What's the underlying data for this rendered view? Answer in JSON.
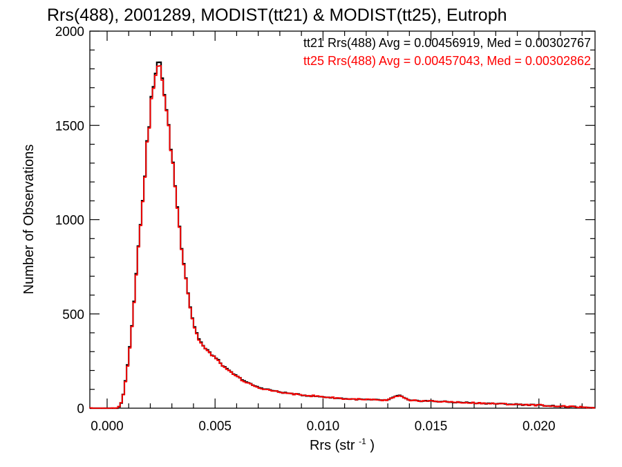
{
  "chart_data": {
    "type": "line",
    "title": "Rrs(488), 2001289, MODIST(tt21) & MODIST(tt25), Eutroph",
    "xlabel": "Rrs (str",
    "xlabel_superscript": "-1",
    "xlabel_suffix": ")",
    "ylabel": "Number of Observations",
    "xlim": [
      -0.0008,
      0.0226
    ],
    "ylim": [
      0,
      2000
    ],
    "xticks": [
      {
        "value": 0.0,
        "label": "0.000"
      },
      {
        "value": 0.005,
        "label": "0.005"
      },
      {
        "value": 0.01,
        "label": "0.010"
      },
      {
        "value": 0.015,
        "label": "0.015"
      },
      {
        "value": 0.02,
        "label": "0.020"
      }
    ],
    "yticks": [
      {
        "value": 0,
        "label": "0"
      },
      {
        "value": 500,
        "label": "500"
      },
      {
        "value": 1000,
        "label": "1000"
      },
      {
        "value": 1500,
        "label": "1500"
      },
      {
        "value": 2000,
        "label": "2000"
      }
    ],
    "grid": false,
    "legend_position": "top-right",
    "legend": [
      {
        "text": "tt21 Rrs(488) Avg = 0.00456919, Med = 0.00302767",
        "color": "#000000"
      },
      {
        "text": "tt25 Rrs(488) Avg = 0.00457043, Med = 0.00302862",
        "color": "#ff0000"
      }
    ],
    "series": [
      {
        "name": "tt21",
        "color": "#000000",
        "x": [
          0.0,
          0.0005,
          0.0007,
          0.0009,
          0.0011,
          0.0013,
          0.0015,
          0.0017,
          0.0019,
          0.0021,
          0.0023,
          0.0024,
          0.0025,
          0.0026,
          0.0027,
          0.0028,
          0.003,
          0.0032,
          0.0034,
          0.0036,
          0.0038,
          0.004,
          0.0042,
          0.0045,
          0.005,
          0.0055,
          0.006,
          0.0065,
          0.007,
          0.008,
          0.009,
          0.01,
          0.011,
          0.012,
          0.013,
          0.0135,
          0.014,
          0.015,
          0.016,
          0.017,
          0.018,
          0.019,
          0.02,
          0.021,
          0.022,
          0.0226
        ],
        "values": [
          0,
          0,
          40,
          180,
          380,
          640,
          920,
          1180,
          1460,
          1690,
          1780,
          1840,
          1830,
          1720,
          1620,
          1520,
          1350,
          1130,
          900,
          740,
          570,
          450,
          380,
          320,
          270,
          210,
          170,
          135,
          110,
          85,
          70,
          60,
          50,
          45,
          42,
          70,
          40,
          38,
          32,
          28,
          24,
          20,
          16,
          10,
          5,
          2
        ]
      },
      {
        "name": "tt25",
        "color": "#ff0000",
        "x": [
          0.0,
          0.0005,
          0.0007,
          0.0009,
          0.0011,
          0.0013,
          0.0015,
          0.0017,
          0.0019,
          0.0021,
          0.0023,
          0.0024,
          0.0025,
          0.0026,
          0.0027,
          0.0028,
          0.003,
          0.0032,
          0.0034,
          0.0036,
          0.0038,
          0.004,
          0.0042,
          0.0045,
          0.005,
          0.0055,
          0.006,
          0.0065,
          0.007,
          0.008,
          0.009,
          0.01,
          0.011,
          0.012,
          0.013,
          0.0135,
          0.014,
          0.015,
          0.016,
          0.017,
          0.018,
          0.019,
          0.02,
          0.021,
          0.022,
          0.0226
        ],
        "values": [
          0,
          0,
          40,
          175,
          375,
          635,
          915,
          1175,
          1455,
          1680,
          1770,
          1810,
          1820,
          1710,
          1615,
          1515,
          1345,
          1125,
          895,
          735,
          565,
          445,
          375,
          318,
          268,
          208,
          168,
          133,
          108,
          84,
          70,
          60,
          50,
          45,
          42,
          68,
          40,
          38,
          32,
          28,
          24,
          20,
          16,
          10,
          5,
          2
        ]
      }
    ]
  }
}
